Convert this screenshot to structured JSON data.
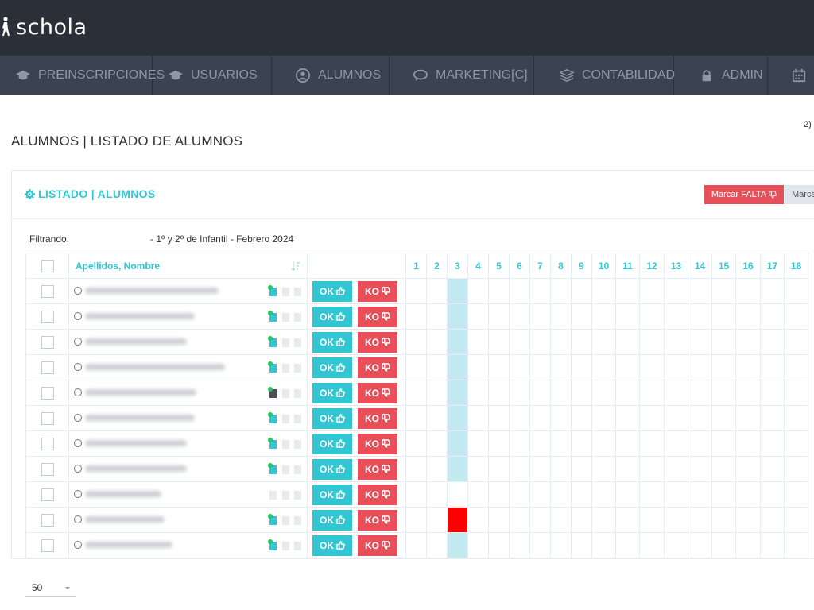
{
  "app": {
    "name": "schola"
  },
  "nav": [
    {
      "label": "PREINSCRIPCIONES",
      "icon": "graduation-cap-icon"
    },
    {
      "label": "USUARIOS",
      "icon": "graduation-cap-icon"
    },
    {
      "label": "ALUMNOS",
      "icon": "user-circle-icon"
    },
    {
      "label": "MARKETING[C]",
      "icon": "chat-icon"
    },
    {
      "label": "CONTABILIDAD",
      "icon": "layers-icon"
    },
    {
      "label": "ADMIN",
      "icon": "lock-icon"
    },
    {
      "label": "",
      "icon": "calendar-icon"
    }
  ],
  "page": {
    "title": "ALUMNOS | LISTADO DE ALUMNOS",
    "corner_fragment": "2)"
  },
  "portlet": {
    "title": "LISTADO | ALUMNOS",
    "title_icon": "gear-icon",
    "mark_absence_label": "Marcar FALTA",
    "mark_second_label": "Marca",
    "filter_label": "Filtrando:",
    "filter_value": "-  1º y 2º de Infantil - Febrero 2024"
  },
  "table": {
    "name_header": "Apellidos, Nombre",
    "days": [
      "1",
      "2",
      "3",
      "4",
      "5",
      "6",
      "7",
      "8",
      "9",
      "10",
      "11",
      "12",
      "13",
      "14",
      "15",
      "16",
      "17",
      "18"
    ],
    "ok_label": "OK",
    "ko_label": "KO",
    "rows": [
      {
        "doc_status": "active",
        "day3": "present"
      },
      {
        "doc_status": "active",
        "day3": "present"
      },
      {
        "doc_status": "active",
        "day3": "present"
      },
      {
        "doc_status": "active",
        "day3": "present"
      },
      {
        "doc_status": "dark",
        "day3": "present"
      },
      {
        "doc_status": "active",
        "day3": "present"
      },
      {
        "doc_status": "active",
        "day3": "present"
      },
      {
        "doc_status": "active",
        "day3": "present"
      },
      {
        "doc_status": "none",
        "day3": "none"
      },
      {
        "doc_status": "active",
        "day3": "absent"
      },
      {
        "doc_status": "active",
        "day3": "present"
      }
    ]
  },
  "pager": {
    "value": "50"
  },
  "colors": {
    "accent": "#32c5d2",
    "danger": "#e7505a",
    "absent": "#ff0000",
    "present_cell": "#c2eaf0",
    "topbar": "#2b3038",
    "nav": "#3b4250"
  }
}
